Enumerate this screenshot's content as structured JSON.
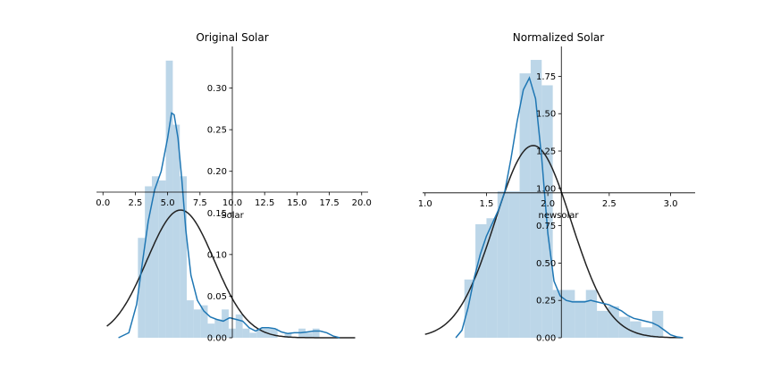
{
  "chart_data": [
    {
      "type": "histogram+kde",
      "title": "Original Solar",
      "xlabel": "Solar",
      "xlim": [
        -0.5,
        20.5
      ],
      "ylim": [
        0,
        0.35
      ],
      "xticks": [
        0.0,
        2.5,
        5.0,
        7.5,
        10.0,
        12.5,
        15.0,
        17.5,
        20.0
      ],
      "xtick_labels": [
        "0.0",
        "2.5",
        "5.0",
        "7.5",
        "10.0",
        "12.5",
        "15.0",
        "17.5",
        "20.0"
      ],
      "yticks": [
        0.0,
        0.05,
        0.1,
        0.15,
        0.2,
        0.25,
        0.3
      ],
      "ytick_labels": [
        "0.00",
        "0.05",
        "0.10",
        "0.15",
        "0.20",
        "0.25",
        "0.30"
      ],
      "x_axis_at_y": 0.175,
      "y_axis_at_x": 10.0,
      "bin_edges": [
        2.7,
        3.24,
        3.78,
        4.32,
        4.86,
        5.4,
        5.94,
        6.48,
        7.02,
        7.56,
        8.1,
        8.64,
        9.18,
        9.72,
        10.26,
        10.8,
        11.34,
        11.88,
        12.42,
        12.96,
        13.5,
        14.04,
        14.58,
        15.12,
        15.66,
        16.2,
        16.74,
        17.28
      ],
      "bin_heights": [
        0.12,
        0.182,
        0.194,
        0.189,
        0.333,
        0.256,
        0.194,
        0.045,
        0.034,
        0.039,
        0.017,
        0.022,
        0.034,
        0.011,
        0.028,
        0.011,
        0.006,
        0.011,
        0.011,
        0.011,
        0.0,
        0.006,
        0.0,
        0.011,
        0.006,
        0.011,
        0.0
      ],
      "hist_color": "#a6c8e0",
      "kde": {
        "color": "#1f77b4",
        "x": [
          1.2,
          2.0,
          2.6,
          3.0,
          3.5,
          4.0,
          4.5,
          5.0,
          5.3,
          5.5,
          5.8,
          6.1,
          6.4,
          6.8,
          7.3,
          7.8,
          8.3,
          8.8,
          9.3,
          9.8,
          10.3,
          10.8,
          11.3,
          11.8,
          12.3,
          12.8,
          13.3,
          13.8,
          14.3,
          14.8,
          15.3,
          15.8,
          16.3,
          16.8,
          17.3,
          17.8,
          18.3
        ],
        "y": [
          0.0,
          0.006,
          0.04,
          0.085,
          0.14,
          0.178,
          0.2,
          0.24,
          0.27,
          0.268,
          0.24,
          0.19,
          0.13,
          0.075,
          0.045,
          0.032,
          0.025,
          0.022,
          0.02,
          0.024,
          0.022,
          0.02,
          0.012,
          0.008,
          0.012,
          0.012,
          0.011,
          0.007,
          0.005,
          0.006,
          0.006,
          0.007,
          0.008,
          0.008,
          0.006,
          0.002,
          0.0
        ]
      },
      "fit": {
        "color": "#222222",
        "mean": 6.0,
        "sd": 2.6,
        "x_range": [
          0.3,
          19.5
        ]
      }
    },
    {
      "type": "histogram+kde",
      "title": "Normalized Solar",
      "xlabel": "newsolar",
      "xlim": [
        0.98,
        3.2
      ],
      "ylim": [
        0,
        1.95
      ],
      "xticks": [
        1.0,
        1.5,
        2.0,
        2.5,
        3.0
      ],
      "xtick_labels": [
        "1.0",
        "1.5",
        "2.0",
        "2.5",
        "3.0"
      ],
      "yticks": [
        0.0,
        0.25,
        0.5,
        0.75,
        1.0,
        1.25,
        1.5,
        1.75
      ],
      "ytick_labels": [
        "0.00",
        "0.25",
        "0.50",
        "0.75",
        "1.00",
        "1.25",
        "1.50",
        "1.75"
      ],
      "x_axis_at_y": 0.97,
      "y_axis_at_x": 2.11,
      "bin_edges": [
        1.32,
        1.41,
        1.5,
        1.59,
        1.68,
        1.77,
        1.86,
        1.95,
        2.04,
        2.13,
        2.22,
        2.31,
        2.4,
        2.49,
        2.58,
        2.67,
        2.76,
        2.85,
        2.94
      ],
      "bin_heights": [
        0.39,
        0.76,
        0.8,
        0.98,
        0.98,
        1.77,
        1.86,
        1.69,
        0.32,
        0.32,
        0.25,
        0.32,
        0.18,
        0.21,
        0.14,
        0.11,
        0.07,
        0.18
      ],
      "hist_color": "#a6c8e0",
      "kde": {
        "color": "#1f77b4",
        "x": [
          1.25,
          1.3,
          1.35,
          1.4,
          1.45,
          1.5,
          1.55,
          1.6,
          1.65,
          1.7,
          1.75,
          1.8,
          1.85,
          1.9,
          1.95,
          2.0,
          2.05,
          2.1,
          2.15,
          2.2,
          2.25,
          2.3,
          2.35,
          2.4,
          2.45,
          2.5,
          2.55,
          2.6,
          2.65,
          2.7,
          2.75,
          2.8,
          2.85,
          2.9,
          2.95,
          3.0,
          3.05,
          3.1
        ],
        "y": [
          0.0,
          0.05,
          0.2,
          0.4,
          0.56,
          0.68,
          0.77,
          0.86,
          0.98,
          1.2,
          1.45,
          1.66,
          1.74,
          1.6,
          1.2,
          0.7,
          0.38,
          0.28,
          0.25,
          0.24,
          0.24,
          0.24,
          0.25,
          0.24,
          0.23,
          0.22,
          0.2,
          0.18,
          0.15,
          0.13,
          0.12,
          0.11,
          0.1,
          0.08,
          0.05,
          0.02,
          0.006,
          0.0
        ]
      },
      "fit": {
        "color": "#222222",
        "mean": 1.88,
        "sd": 0.31,
        "x_range": [
          1.0,
          3.1
        ]
      }
    }
  ]
}
